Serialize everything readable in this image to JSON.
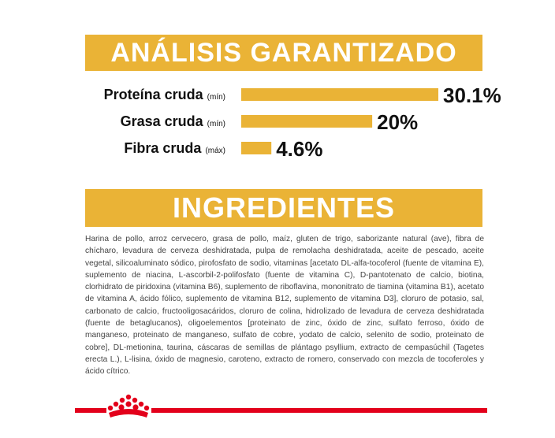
{
  "theme": {
    "accent": "#eab336",
    "text": "#111111",
    "brand_red": "#e3001b"
  },
  "analysis": {
    "title": "ANÁLISIS GARANTIZADO"
  },
  "chart_data": {
    "type": "bar",
    "orientation": "horizontal",
    "categories": [
      {
        "label": "Proteína cruda",
        "qualifier": "(mín)"
      },
      {
        "label": "Grasa cruda",
        "qualifier": "(mín)"
      },
      {
        "label": "Fibra cruda",
        "qualifier": "(máx)"
      }
    ],
    "values": [
      30.1,
      20,
      4.6
    ],
    "value_labels": [
      "30.1%",
      "20%",
      "4.6%"
    ],
    "xlim": [
      0,
      30.1
    ],
    "grid": false,
    "legend": "none"
  },
  "ingredients": {
    "title": "INGREDIENTES",
    "text": "Harina de pollo, arroz cervecero, grasa de pollo, maíz, gluten de trigo, saborizante natural (ave), fibra de chícharo, levadura de cerveza deshidratada, pulpa de remolacha deshidratada, aceite de pescado, aceite vegetal, silicoaluminato sódico, pirofosfato de sodio, vitaminas [acetato DL-alfa-tocoferol (fuente de vitamina E), suplemento de niacina, L-ascorbil-2-polifosfato (fuente de vitamina C), D-pantotenato de calcio, biotina, clorhidrato de piridoxina (vitamina B6), suplemento de riboflavina, mononitrato de tiamina (vitamina B1), acetato de vitamina A, ácido fólico, suplemento de vitamina B12, suplemento de vitamina D3], cloruro de potasio, sal, carbonato de calcio, fructooligosacáridos, cloruro de colina, hidrolizado de levadura de cerveza deshidratada (fuente de betaglucanos), oligoelementos [proteinato de zinc, óxido de zinc, sulfato ferroso, óxido de manganeso, proteinato de manganeso, sulfato de cobre, yodato de calcio, selenito de sodio, proteinato de cobre], DL-metionina, taurina, cáscaras de semillas de plántago psyllium, extracto de cempasúchil (Tagetes erecta L.), L-lisina, óxido de magnesio, caroteno, extracto de romero, conservado con mezcla de tocoferoles y ácido cítrico."
  },
  "footer": {
    "logo": "royal-canin-crown-logo"
  }
}
